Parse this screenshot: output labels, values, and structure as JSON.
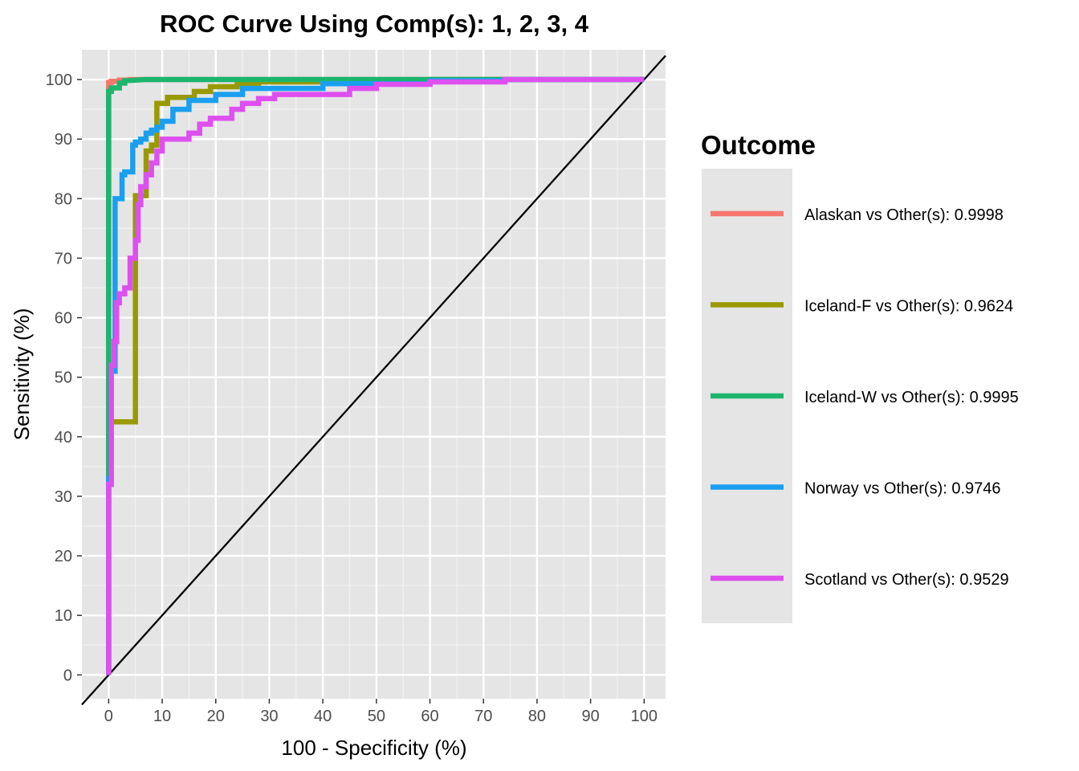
{
  "chart_data": {
    "type": "line",
    "title": "ROC Curve Using Comp(s): 1, 2, 3, 4",
    "xlabel": "100 - Specificity (%)",
    "ylabel": "Sensitivity (%)",
    "xlim": [
      -5,
      104
    ],
    "ylim": [
      -4,
      105
    ],
    "x_ticks": [
      "0",
      "10",
      "20",
      "30",
      "40",
      "50",
      "60",
      "70",
      "80",
      "90",
      "100"
    ],
    "y_ticks": [
      "0",
      "10",
      "20",
      "30",
      "40",
      "50",
      "60",
      "70",
      "80",
      "90",
      "100"
    ],
    "grid": true,
    "background": "#e5e5e5",
    "reference_line": {
      "x": [
        -5,
        104
      ],
      "y": [
        -5,
        104
      ],
      "color": "#000000"
    },
    "legend": {
      "title": "Outcome",
      "position": "right"
    },
    "series": [
      {
        "name": "Alaskan vs Other(s): 0.9998",
        "color": "#f8766d",
        "x": [
          0,
          0,
          0.5,
          0.5,
          2,
          2,
          4,
          4,
          6,
          100
        ],
        "y": [
          0,
          99.5,
          99.5,
          99.7,
          99.7,
          99.9,
          99.9,
          100,
          100,
          100
        ]
      },
      {
        "name": "Iceland-F vs Other(s): 0.9624",
        "color": "#999900",
        "x": [
          0,
          0,
          0.3,
          0.3,
          5,
          5,
          5.2,
          5.2,
          7,
          7,
          8,
          8,
          9,
          9,
          11,
          11,
          16,
          16,
          19,
          19,
          24,
          24,
          28,
          28,
          40,
          40,
          60,
          60,
          100
        ],
        "y": [
          0,
          42.5,
          42.5,
          42.5,
          42.5,
          80.5,
          80.5,
          80.5,
          80.5,
          88,
          88,
          89,
          89,
          96,
          96,
          97,
          97,
          98,
          98,
          98.8,
          98.8,
          99.2,
          99.2,
          99.6,
          99.6,
          99.9,
          99.9,
          100,
          100
        ]
      },
      {
        "name": "Iceland-W vs Other(s): 0.9995",
        "color": "#1cb56d",
        "x": [
          0,
          0,
          0.5,
          0.5,
          2,
          2,
          3,
          3,
          7,
          100
        ],
        "y": [
          0,
          98,
          98,
          98.6,
          98.6,
          99.4,
          99.4,
          99.8,
          100,
          100
        ]
      },
      {
        "name": "Norway vs Other(s): 0.9746",
        "color": "#1a9ff0",
        "x": [
          0,
          0,
          0.5,
          0.5,
          1.2,
          1.2,
          2.5,
          2.5,
          3,
          3,
          4.5,
          4.5,
          5,
          5,
          6,
          6,
          7,
          7,
          8,
          8,
          9,
          9,
          10,
          10,
          12,
          12,
          15,
          15,
          20,
          20,
          25,
          25,
          40,
          40,
          60,
          60,
          74,
          74,
          100
        ],
        "y": [
          0,
          33,
          33,
          51,
          51,
          80,
          80,
          84,
          84,
          84.5,
          84.5,
          89,
          89,
          89.5,
          89.5,
          90,
          90,
          91,
          91,
          91.5,
          91.5,
          92,
          92,
          93,
          93,
          95,
          95,
          96.5,
          96.5,
          97.5,
          97.5,
          98.5,
          98.5,
          99.3,
          99.3,
          99.8,
          99.8,
          100,
          100
        ]
      },
      {
        "name": "Scotland vs Other(s): 0.9529",
        "color": "#de4ff0",
        "x": [
          0,
          0,
          0.5,
          0.5,
          1,
          1,
          1.5,
          1.5,
          2,
          2,
          3,
          3,
          4,
          4,
          5,
          5,
          5.5,
          5.5,
          6,
          6,
          7,
          7,
          8,
          8,
          9,
          9,
          10,
          10,
          15,
          15,
          17,
          17,
          19,
          19,
          23,
          23,
          25,
          25,
          28,
          28,
          31,
          31,
          45,
          45,
          50,
          50,
          60,
          60,
          74,
          74,
          100
        ],
        "y": [
          0,
          32,
          32,
          52,
          52,
          56,
          56,
          62.5,
          62.5,
          64,
          64,
          65,
          65,
          70,
          70,
          73,
          73,
          79,
          79,
          82,
          82,
          84,
          84,
          86,
          86,
          88,
          88,
          90,
          90,
          91,
          91,
          92.5,
          92.5,
          93.5,
          93.5,
          95,
          95,
          96,
          96,
          96.8,
          96.8,
          97.5,
          97.5,
          98.5,
          98.5,
          99.2,
          99.2,
          99.6,
          99.6,
          100,
          100
        ]
      }
    ]
  }
}
